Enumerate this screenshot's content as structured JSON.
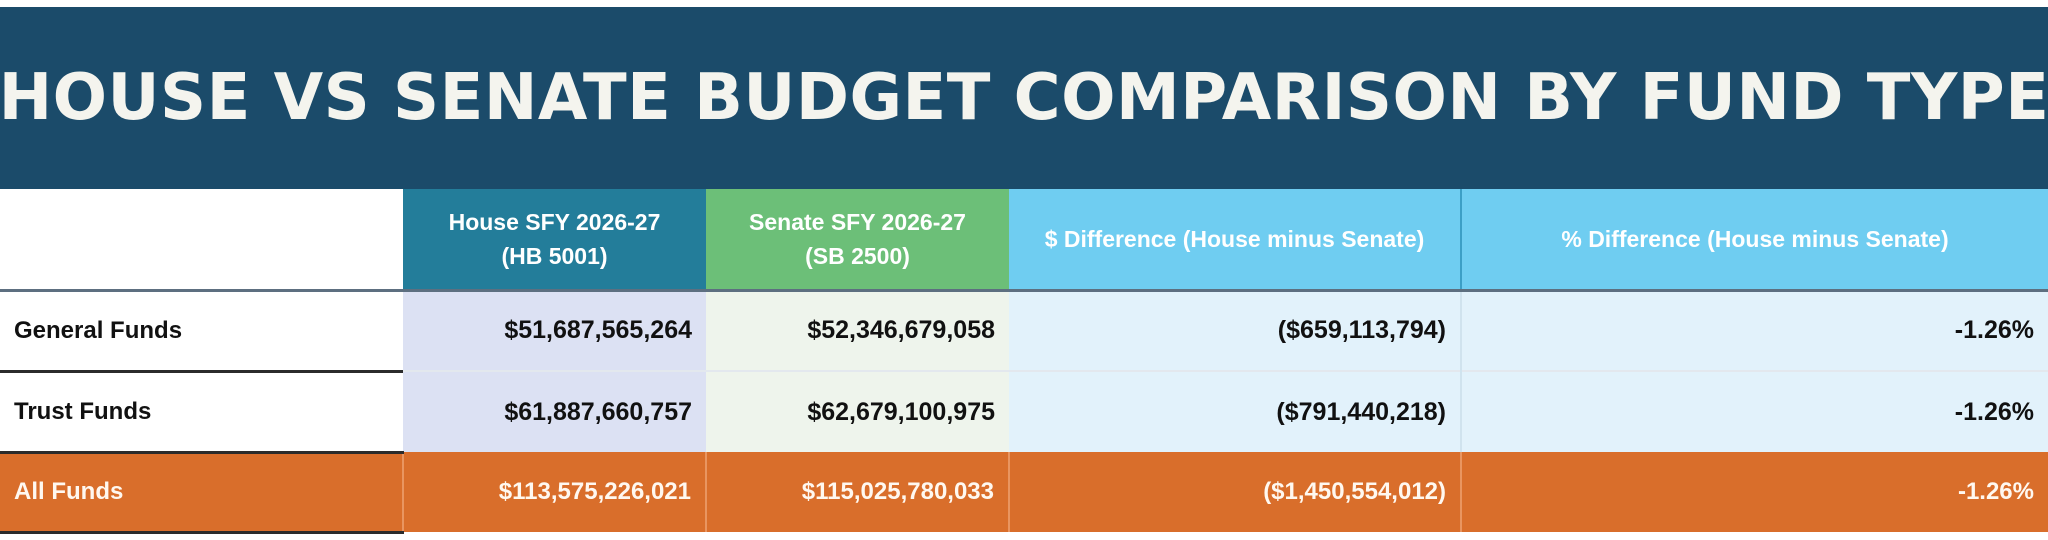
{
  "title": "HOUSE VS SENATE BUDGET COMPARISON BY FUND TYPE",
  "headers": {
    "house_line1": "House SFY 2026-27",
    "house_line2": "(HB 5001)",
    "senate_line1": "Senate SFY 2026-27",
    "senate_line2": "(SB 2500)",
    "diff": "$ Difference (House minus Senate)",
    "pct": "% Difference (House minus Senate)"
  },
  "rows": [
    {
      "label": "General Funds",
      "house": "$51,687,565,264",
      "senate": "$52,346,679,058",
      "diff": "($659,113,794)",
      "pct": "-1.26%"
    },
    {
      "label": "Trust Funds",
      "house": "$61,887,660,757",
      "senate": "$62,679,100,975",
      "diff": "($791,440,218)",
      "pct": "-1.26%"
    }
  ],
  "total": {
    "label": "All Funds",
    "house": "$113,575,226,021",
    "senate": "$115,025,780,033",
    "diff": "($1,450,554,012)",
    "pct": "-1.26%"
  },
  "colors": {
    "title_bg": "#1b4b6a",
    "house_header": "#237d9a",
    "senate_header": "#6cbf78",
    "diff_header": "#6fcdf1",
    "total_row": "#d96e2b"
  }
}
